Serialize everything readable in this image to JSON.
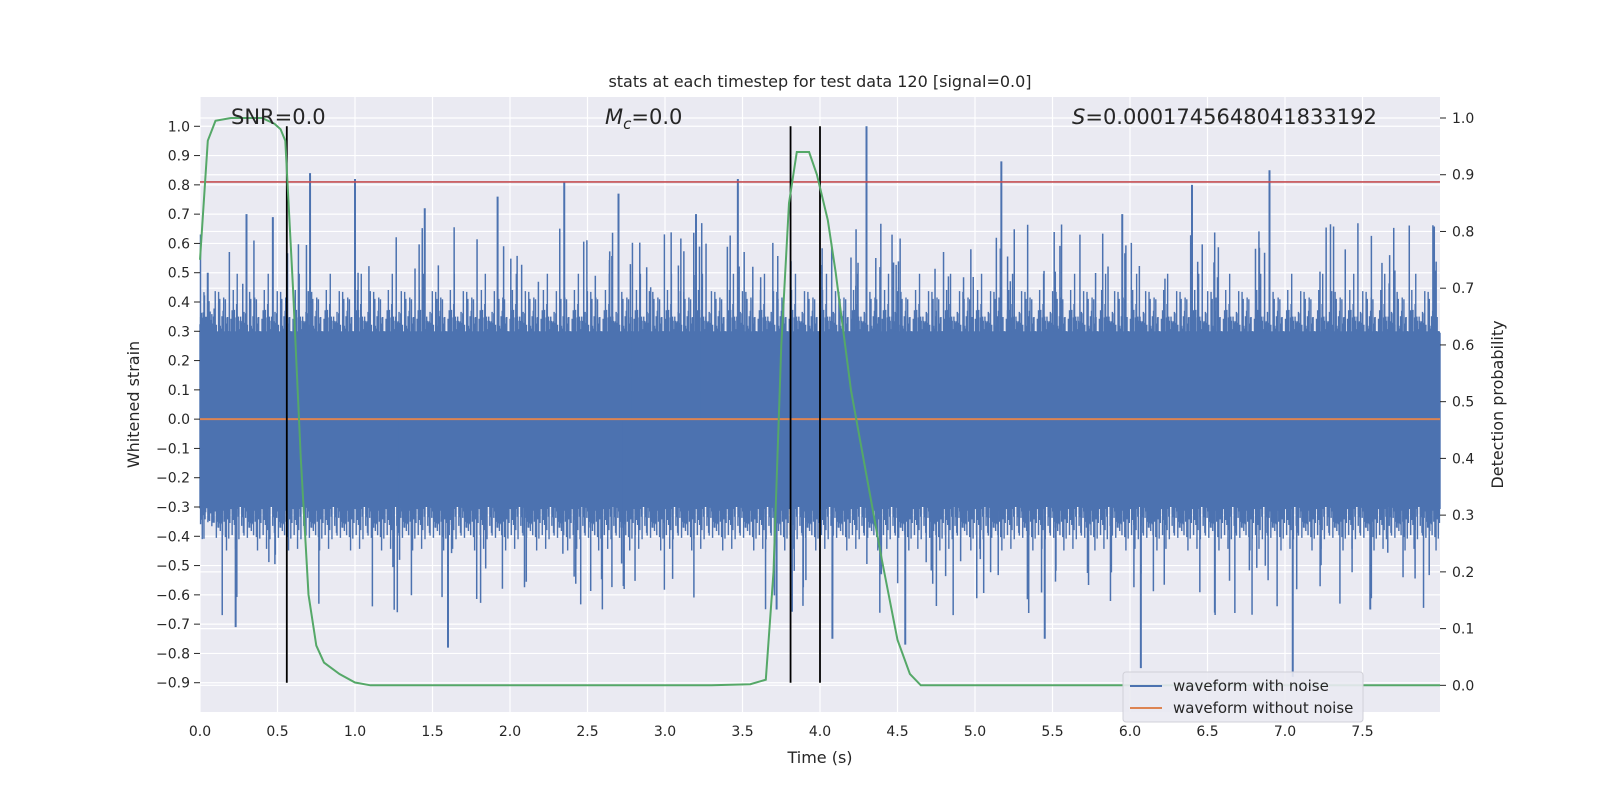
{
  "chart_data": {
    "type": "line",
    "title": "stats at each timestep for test data 120 [signal=0.0]",
    "xlabel": "Time (s)",
    "ylabel_left": "Whitened strain",
    "ylabel_right": "Detection probability",
    "xlim": [
      0.0,
      8.0
    ],
    "ylim_left": [
      -1.0,
      1.1
    ],
    "ylim_right": [
      -0.047,
      1.037
    ],
    "x_ticks": [
      "0.0",
      "0.5",
      "1.0",
      "1.5",
      "2.0",
      "2.5",
      "3.0",
      "3.5",
      "4.0",
      "4.5",
      "5.0",
      "5.5",
      "6.0",
      "6.5",
      "7.0",
      "7.5"
    ],
    "y_ticks_left": [
      "1.0",
      "0.9",
      "0.8",
      "0.7",
      "0.6",
      "0.5",
      "0.4",
      "0.3",
      "0.2",
      "0.1",
      "0.0",
      "−0.1",
      "−0.2",
      "−0.3",
      "−0.4",
      "−0.5",
      "−0.6",
      "−0.7",
      "−0.8",
      "−0.9"
    ],
    "y_ticks_right": [
      "1.0",
      "0.9",
      "0.8",
      "0.7",
      "0.6",
      "0.5",
      "0.4",
      "0.3",
      "0.2",
      "0.1",
      "0.0"
    ],
    "annotations": {
      "snr": "SNR=0.0",
      "mc": "=0.0",
      "mc_symbol": "M",
      "mc_sub": "c",
      "s": "=0.0001745648041833192",
      "s_symbol": "S"
    },
    "threshold_left": 0.81,
    "zero_line_left": 0.0,
    "vertical_lines_x": [
      0.56,
      3.81,
      4.0
    ],
    "noise_waveform": {
      "envelope_typical": [
        -0.45,
        0.45
      ],
      "peaks": [
        {
          "x": 0.05,
          "y": 0.5
        },
        {
          "x": 0.23,
          "y": -0.71
        },
        {
          "x": 0.3,
          "y": 0.7
        },
        {
          "x": 0.47,
          "y": 0.69
        },
        {
          "x": 0.71,
          "y": 0.84
        },
        {
          "x": 1.0,
          "y": 0.82
        },
        {
          "x": 1.45,
          "y": 0.72
        },
        {
          "x": 1.6,
          "y": -0.78
        },
        {
          "x": 1.92,
          "y": 0.76
        },
        {
          "x": 2.35,
          "y": 0.81
        },
        {
          "x": 2.7,
          "y": 0.77
        },
        {
          "x": 3.2,
          "y": 0.7
        },
        {
          "x": 3.47,
          "y": 0.82
        },
        {
          "x": 3.72,
          "y": -0.65
        },
        {
          "x": 4.08,
          "y": -0.75
        },
        {
          "x": 4.3,
          "y": 1.0
        },
        {
          "x": 4.55,
          "y": -0.77
        },
        {
          "x": 5.17,
          "y": 0.88
        },
        {
          "x": 5.45,
          "y": -0.75
        },
        {
          "x": 5.95,
          "y": 0.7
        },
        {
          "x": 6.07,
          "y": -0.85
        },
        {
          "x": 6.4,
          "y": 0.8
        },
        {
          "x": 6.9,
          "y": 0.85
        },
        {
          "x": 7.05,
          "y": -0.88
        },
        {
          "x": 7.55,
          "y": -0.65
        }
      ]
    },
    "clean_waveform_value": 0.0,
    "detection_probability": {
      "x": [
        0.0,
        0.05,
        0.1,
        0.2,
        0.3,
        0.4,
        0.48,
        0.52,
        0.55,
        0.6,
        0.65,
        0.7,
        0.75,
        0.8,
        0.9,
        1.0,
        1.1,
        1.2,
        1.5,
        2.0,
        2.5,
        3.0,
        3.3,
        3.55,
        3.65,
        3.7,
        3.75,
        3.8,
        3.85,
        3.93,
        3.98,
        4.05,
        4.1,
        4.2,
        4.3,
        4.4,
        4.5,
        4.58,
        4.65,
        5.0,
        6.0,
        7.0,
        8.0
      ],
      "y": [
        0.75,
        0.96,
        0.995,
        1.0,
        1.0,
        1.0,
        0.99,
        0.98,
        0.96,
        0.7,
        0.4,
        0.16,
        0.07,
        0.04,
        0.02,
        0.005,
        0.0,
        0.0,
        0.0,
        0.0,
        0.0,
        0.0,
        0.0,
        0.002,
        0.01,
        0.2,
        0.6,
        0.85,
        0.94,
        0.94,
        0.9,
        0.82,
        0.73,
        0.52,
        0.37,
        0.22,
        0.08,
        0.02,
        0.0,
        0.0,
        0.0,
        0.0,
        0.0
      ]
    },
    "legend": {
      "placement": "lower-right",
      "entries": [
        "waveform with noise",
        "waveform without noise"
      ]
    },
    "colors": {
      "noise": "#4c72b0",
      "clean": "#dd8452",
      "prob": "#55a868",
      "threshold": "#c44e52",
      "vline": "#000000",
      "bg": "#eaeaf2",
      "grid": "#ffffff"
    }
  }
}
